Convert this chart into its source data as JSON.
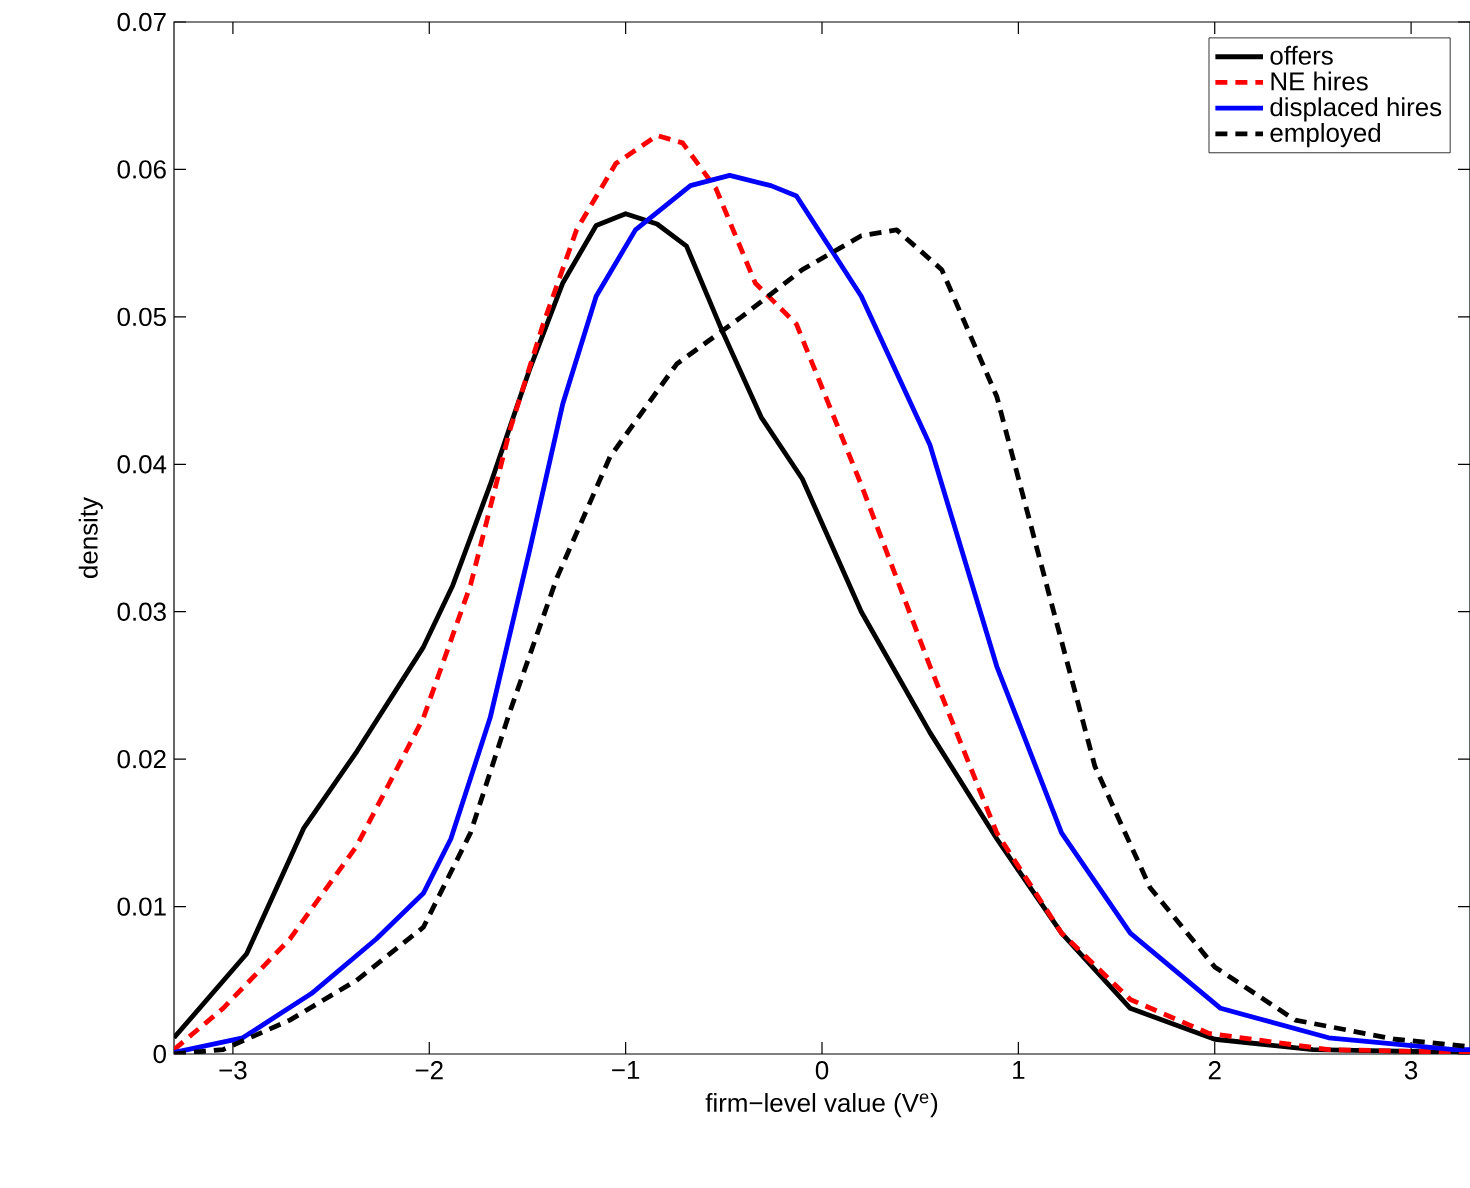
{
  "chart_data": {
    "type": "line",
    "xlabel": "firm−level value (V$^{e}$)",
    "ylabel": "density",
    "xlim": [
      -3.3,
      3.3
    ],
    "ylim": [
      0,
      0.07
    ],
    "xticks": [
      {
        "value": -3,
        "label": "−3"
      },
      {
        "value": -2,
        "label": "−2"
      },
      {
        "value": -1,
        "label": "−1"
      },
      0,
      1,
      2,
      3
    ],
    "yticks": [
      0,
      0.01,
      0.02,
      0.03,
      0.04,
      0.05,
      0.06,
      0.07
    ],
    "legend": "top right",
    "series": [
      {
        "name": "offers",
        "color": "#000000",
        "line_style": "solid",
        "x": [
          -3.3,
          -2.93,
          -2.64,
          -2.37,
          -2.03,
          -1.88,
          -1.69,
          -1.49,
          -1.32,
          -1.15,
          -1.0,
          -0.84,
          -0.69,
          -0.51,
          -0.31,
          -0.1,
          0.2,
          0.55,
          0.89,
          1.22,
          1.57,
          2.0,
          2.5,
          3.3
        ],
        "values": [
          0.0011,
          0.0068,
          0.0153,
          0.0205,
          0.0276,
          0.0318,
          0.0386,
          0.0464,
          0.0523,
          0.0562,
          0.057,
          0.0563,
          0.0548,
          0.0491,
          0.0432,
          0.039,
          0.03,
          0.0218,
          0.0146,
          0.0082,
          0.0031,
          0.001,
          0.0003,
          0.0001
        ]
      },
      {
        "name": "NE hires",
        "color": "#ff0000",
        "line_style": "dashed",
        "x": [
          -3.3,
          -3.05,
          -2.71,
          -2.37,
          -2.03,
          -1.79,
          -1.59,
          -1.42,
          -1.25,
          -1.05,
          -0.84,
          -0.71,
          -0.54,
          -0.34,
          -0.13,
          0.2,
          0.55,
          0.89,
          1.22,
          1.57,
          1.97,
          2.58,
          3.3
        ],
        "values": [
          0.0003,
          0.0031,
          0.0078,
          0.0141,
          0.0228,
          0.0318,
          0.0423,
          0.0495,
          0.0559,
          0.0604,
          0.0623,
          0.0618,
          0.0587,
          0.0523,
          0.0495,
          0.0386,
          0.0263,
          0.015,
          0.0082,
          0.0037,
          0.0014,
          0.0003,
          0.0001
        ]
      },
      {
        "name": "displaced hires",
        "color": "#0000ff",
        "line_style": "solid",
        "x": [
          -3.3,
          -2.95,
          -2.6,
          -2.27,
          -2.03,
          -1.89,
          -1.69,
          -1.49,
          -1.32,
          -1.15,
          -0.95,
          -0.67,
          -0.47,
          -0.26,
          -0.13,
          0.2,
          0.55,
          0.89,
          1.22,
          1.57,
          2.03,
          2.58,
          3.22,
          3.3
        ],
        "values": [
          0.0001,
          0.0011,
          0.0041,
          0.0078,
          0.0109,
          0.0146,
          0.0228,
          0.0341,
          0.0441,
          0.0514,
          0.0559,
          0.0589,
          0.0596,
          0.0589,
          0.0582,
          0.0514,
          0.0413,
          0.0263,
          0.015,
          0.0082,
          0.0031,
          0.0011,
          0.0003,
          0.0003
        ]
      },
      {
        "name": "employed",
        "color": "#000000",
        "line_style": "dashed",
        "x": [
          -3.3,
          -3.05,
          -2.71,
          -2.37,
          -2.03,
          -1.79,
          -1.59,
          -1.35,
          -1.08,
          -0.74,
          -0.41,
          -0.1,
          0.2,
          0.38,
          0.61,
          0.89,
          1.16,
          1.39,
          1.67,
          2.0,
          2.41,
          2.92,
          3.3
        ],
        "values": [
          0.0,
          0.0003,
          0.0023,
          0.005,
          0.0086,
          0.015,
          0.0232,
          0.0323,
          0.0405,
          0.0468,
          0.05,
          0.0532,
          0.0555,
          0.0559,
          0.0532,
          0.0446,
          0.031,
          0.0195,
          0.0113,
          0.0059,
          0.0023,
          0.001,
          0.0005
        ]
      }
    ]
  }
}
